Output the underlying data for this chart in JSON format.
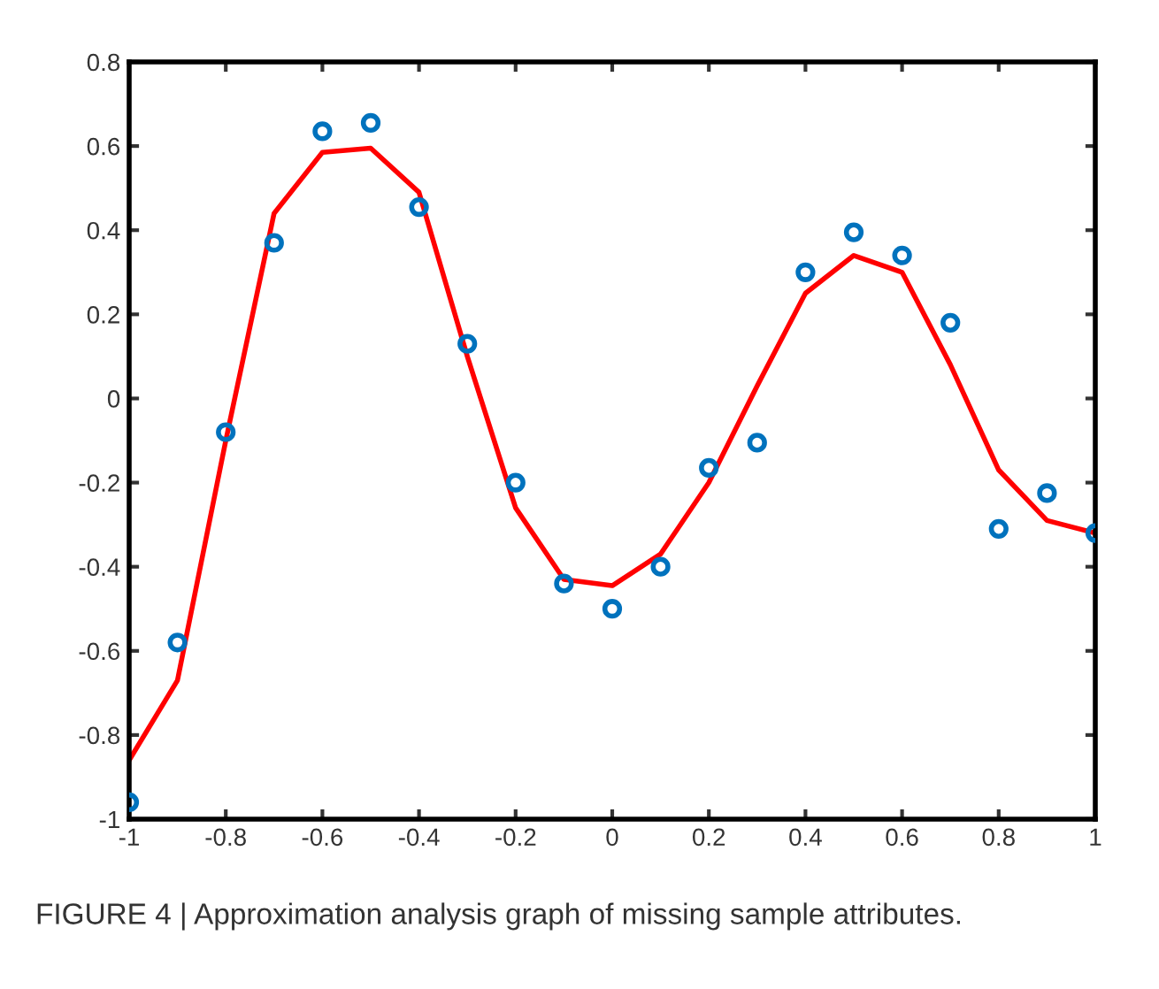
{
  "chart_data": {
    "type": "scatter",
    "x": [
      -1,
      -0.9,
      -0.8,
      -0.7,
      -0.6,
      -0.5,
      -0.4,
      -0.3,
      -0.2,
      -0.1,
      0,
      0.1,
      0.2,
      0.3,
      0.4,
      0.5,
      0.6,
      0.7,
      0.8,
      0.9,
      1
    ],
    "series": [
      {
        "color": "#0072bd",
        "marker": "circle",
        "values": [
          -0.96,
          -0.58,
          -0.08,
          0.37,
          0.635,
          0.655,
          0.455,
          0.13,
          -0.2,
          -0.44,
          -0.5,
          -0.4,
          -0.165,
          -0.105,
          0.3,
          0.395,
          0.34,
          0.18,
          -0.31,
          -0.225,
          -0.32
        ]
      },
      {
        "type": "line",
        "color": "#ff0000",
        "marker": "none",
        "line_style": "solid",
        "values": [
          -0.86,
          -0.67,
          -0.1,
          0.44,
          0.585,
          0.595,
          0.49,
          0.1,
          -0.26,
          -0.43,
          -0.445,
          -0.37,
          -0.2,
          0.03,
          0.25,
          0.34,
          0.3,
          0.08,
          -0.17,
          -0.29,
          -0.32
        ]
      }
    ],
    "xlim": [
      -1,
      1
    ],
    "xticks": [
      -1,
      -0.8,
      -0.6,
      -0.4,
      -0.2,
      0,
      0.2,
      0.4,
      0.6,
      0.8,
      1
    ],
    "ylim": [
      -1,
      0.8
    ],
    "yticks": [
      -1,
      -0.8,
      -0.6,
      -0.4,
      -0.2,
      0,
      0.2,
      0.4,
      0.6,
      0.8
    ],
    "grid": false,
    "annotations": [
      "FIGURE 4 | Approximation analysis graph of missing sample attributes."
    ]
  }
}
